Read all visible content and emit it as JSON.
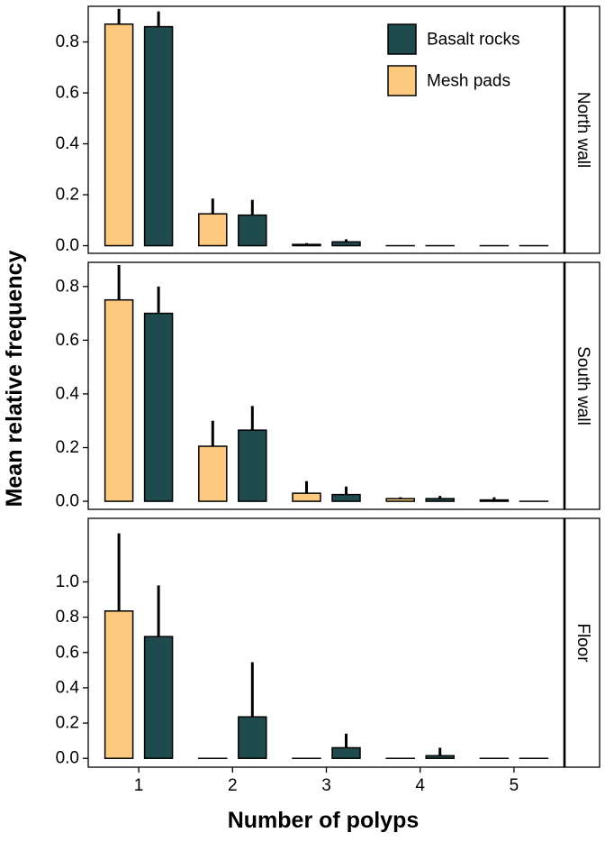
{
  "chart_data": {
    "type": "bar",
    "xlabel": "Number of polyps",
    "ylabel": "Mean relative frequency",
    "categories": [
      "1",
      "2",
      "3",
      "4",
      "5"
    ],
    "series_names": [
      "Basalt rocks",
      "Mesh pads"
    ],
    "colors": {
      "Mesh pads": "#FDC97E",
      "Basalt rocks": "#1F4A4E"
    },
    "legend": {
      "position": "top-right",
      "items": [
        "Basalt rocks",
        "Mesh pads"
      ]
    },
    "panels": [
      {
        "label": "North wall",
        "ylim": [
          -0.03,
          0.94
        ],
        "yticks": [
          "0.0",
          "0.2",
          "0.4",
          "0.6",
          "0.8"
        ],
        "series": [
          {
            "name": "Mesh pads",
            "values": [
              0.87,
              0.125,
              0.005,
              0.0,
              0.0
            ],
            "errors": [
              0.06,
              0.06,
              0.005,
              0.0,
              0.0
            ]
          },
          {
            "name": "Basalt rocks",
            "values": [
              0.86,
              0.12,
              0.015,
              0.0,
              0.0
            ],
            "errors": [
              0.06,
              0.06,
              0.01,
              0.0,
              0.0
            ]
          }
        ]
      },
      {
        "label": "South wall",
        "ylim": [
          -0.03,
          0.89
        ],
        "yticks": [
          "0.0",
          "0.2",
          "0.4",
          "0.6",
          "0.8"
        ],
        "series": [
          {
            "name": "Mesh pads",
            "values": [
              0.75,
              0.205,
              0.03,
              0.01,
              0.005
            ],
            "errors": [
              0.13,
              0.095,
              0.045,
              0.005,
              0.01
            ]
          },
          {
            "name": "Basalt rocks",
            "values": [
              0.7,
              0.265,
              0.025,
              0.01,
              0.0
            ],
            "errors": [
              0.1,
              0.09,
              0.03,
              0.01,
              0.0
            ]
          }
        ]
      },
      {
        "label": "Floor",
        "ylim": [
          -0.05,
          1.36
        ],
        "yticks": [
          "0.0",
          "0.2",
          "0.4",
          "0.6",
          "0.8",
          "1.0"
        ],
        "series": [
          {
            "name": "Mesh pads",
            "values": [
              0.835,
              0.0,
              0.0,
              0.0,
              0.0
            ],
            "errors": [
              0.44,
              0.0,
              0.0,
              0.0,
              0.0
            ]
          },
          {
            "name": "Basalt rocks",
            "values": [
              0.69,
              0.235,
              0.06,
              0.015,
              0.0
            ],
            "errors": [
              0.29,
              0.31,
              0.08,
              0.045,
              0.0
            ]
          }
        ]
      }
    ]
  }
}
